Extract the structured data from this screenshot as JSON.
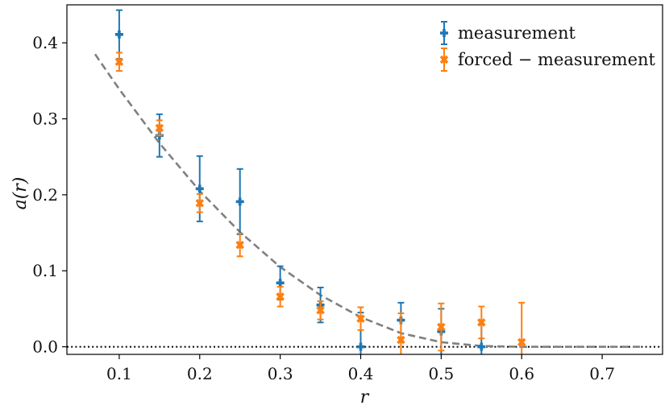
{
  "chart_data": {
    "type": "scatter",
    "title": "",
    "xlabel": "r",
    "ylabel": "a(r)",
    "xlim": [
      0.035,
      0.775
    ],
    "ylim": [
      -0.01,
      0.45
    ],
    "xticks": [
      0.1,
      0.2,
      0.3,
      0.4,
      0.5,
      0.6,
      0.7
    ],
    "xtick_labels": [
      "0.1",
      "0.2",
      "0.3",
      "0.4",
      "0.5",
      "0.6",
      "0.7"
    ],
    "yticks": [
      0.0,
      0.1,
      0.2,
      0.3,
      0.4
    ],
    "ytick_labels": [
      "0.0",
      "0.1",
      "0.2",
      "0.3",
      "0.4"
    ],
    "grid": false,
    "legend_position": "top-right",
    "series": [
      {
        "name": "measurement",
        "color": "#1f77b4",
        "marker": "plus",
        "x": [
          0.1,
          0.15,
          0.2,
          0.25,
          0.3,
          0.35,
          0.4,
          0.45,
          0.5,
          0.55
        ],
        "y": [
          0.411,
          0.278,
          0.208,
          0.191,
          0.084,
          0.055,
          0.0,
          0.035,
          0.02,
          0.0
        ],
        "err": [
          0.032,
          0.028,
          0.043,
          0.043,
          0.022,
          0.023,
          0.045,
          0.023,
          0.03,
          0.03
        ]
      },
      {
        "name": "forced − measurement",
        "color": "#ff7f0e",
        "marker": "x",
        "x": [
          0.1,
          0.15,
          0.2,
          0.25,
          0.3,
          0.35,
          0.4,
          0.45,
          0.5,
          0.55,
          0.6
        ],
        "y": [
          0.375,
          0.288,
          0.189,
          0.134,
          0.066,
          0.048,
          0.037,
          0.009,
          0.026,
          0.032,
          0.006
        ],
        "err": [
          0.012,
          0.01,
          0.012,
          0.015,
          0.013,
          0.012,
          0.015,
          0.035,
          0.031,
          0.021,
          0.052
        ]
      }
    ],
    "fit_curve": {
      "color": "#808080",
      "style": "dashed",
      "x": [
        0.07,
        0.1,
        0.15,
        0.2,
        0.25,
        0.3,
        0.35,
        0.4,
        0.45,
        0.5,
        0.55,
        0.6,
        0.65,
        0.7,
        0.75
      ],
      "y": [
        0.385,
        0.339,
        0.268,
        0.205,
        0.151,
        0.105,
        0.068,
        0.039,
        0.018,
        0.006,
        0.001,
        0.0,
        0.0,
        0.0,
        0.0
      ]
    },
    "reference_line": {
      "y": 0.0,
      "style": "dotted",
      "color": "#000000"
    }
  }
}
